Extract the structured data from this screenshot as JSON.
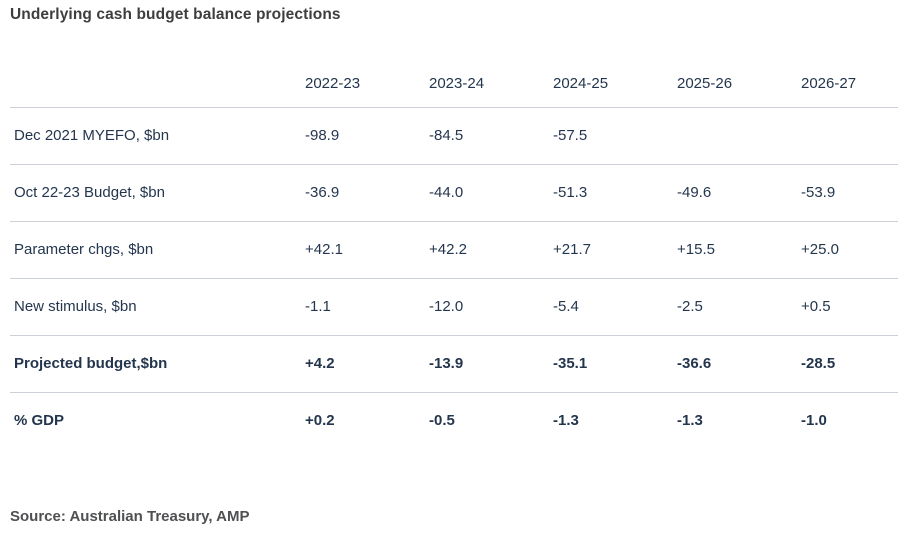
{
  "title": "Underlying cash budget balance projections",
  "source": "Source: Australian Treasury, AMP",
  "colors": {
    "table_text": "#24364e",
    "title_text": "#3e3e40",
    "source_text": "#4f5052",
    "divider": "#ccd1d7",
    "background": "#ffffff"
  },
  "table": {
    "columns": [
      "",
      "2022-23",
      "2023-24",
      "2024-25",
      "2025-26",
      "2026-27"
    ],
    "rows": [
      {
        "label": "Dec 2021 MYEFO, $bn",
        "values": [
          "-98.9",
          "-84.5",
          "-57.5",
          "",
          ""
        ]
      },
      {
        "label": "Oct 22-23 Budget, $bn",
        "values": [
          "-36.9",
          "-44.0",
          "-51.3",
          "-49.6",
          "-53.9"
        ]
      },
      {
        "label": "Parameter chgs, $bn",
        "values": [
          "+42.1",
          "+42.2",
          "+21.7",
          "+15.5",
          "+25.0"
        ]
      },
      {
        "label": "New stimulus, $bn",
        "values": [
          "-1.1",
          "-12.0",
          "-5.4",
          "-2.5",
          "+0.5"
        ]
      },
      {
        "label": "Projected budget,$bn",
        "values": [
          "+4.2",
          "-13.9",
          "-35.1",
          "-36.6",
          "-28.5"
        ]
      },
      {
        "label": "% GDP",
        "values": [
          "+0.2",
          "-0.5",
          "-1.3",
          "-1.3",
          "-1.0"
        ]
      }
    ]
  },
  "chart_data": {
    "type": "table",
    "title": "Underlying cash budget balance projections",
    "categories": [
      "2022-23",
      "2023-24",
      "2024-25",
      "2025-26",
      "2026-27"
    ],
    "series": [
      {
        "name": "Dec 2021 MYEFO, $bn",
        "values": [
          -98.9,
          -84.5,
          -57.5,
          null,
          null
        ]
      },
      {
        "name": "Oct 22-23 Budget, $bn",
        "values": [
          -36.9,
          -44.0,
          -51.3,
          -49.6,
          -53.9
        ]
      },
      {
        "name": "Parameter chgs, $bn",
        "values": [
          42.1,
          42.2,
          21.7,
          15.5,
          25.0
        ]
      },
      {
        "name": "New stimulus, $bn",
        "values": [
          -1.1,
          -12.0,
          -5.4,
          -2.5,
          0.5
        ]
      },
      {
        "name": "Projected budget,$bn",
        "values": [
          4.2,
          -13.9,
          -35.1,
          -36.6,
          -28.5
        ]
      },
      {
        "name": "% GDP",
        "values": [
          0.2,
          -0.5,
          -1.3,
          -1.3,
          -1.0
        ]
      }
    ],
    "annotations": [
      "Source: Australian Treasury, AMP"
    ]
  }
}
